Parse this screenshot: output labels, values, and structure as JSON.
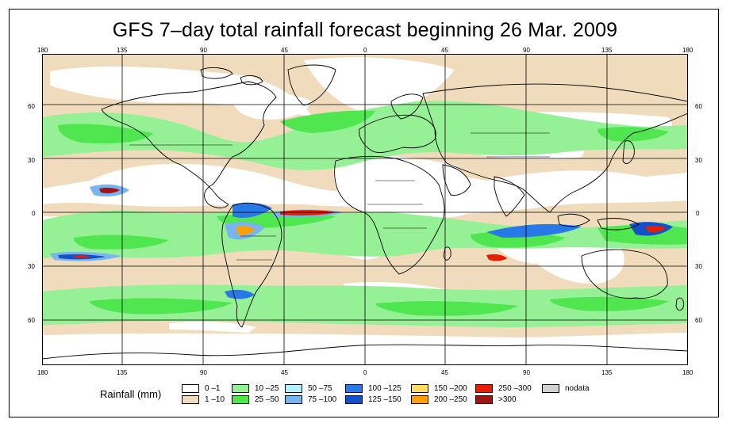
{
  "title": "GFS 7–day total rainfall forecast beginning 26 Mar. 2009",
  "axes": {
    "lon_ticks": [
      "180",
      "135",
      "90",
      "45",
      "0",
      "45",
      "90",
      "135",
      "180"
    ],
    "lat_ticks": [
      "60",
      "30",
      "0",
      "30",
      "60"
    ]
  },
  "legend": {
    "title": "Rainfall (mm)",
    "items": [
      {
        "label": "0 –1",
        "color": "#ffffff"
      },
      {
        "label": "1 –10",
        "color": "#f0dcbc"
      },
      {
        "label": "10 –25",
        "color": "#96f096"
      },
      {
        "label": "25 –50",
        "color": "#50e650"
      },
      {
        "label": "50 –75",
        "color": "#b4f0fa"
      },
      {
        "label": "75 –100",
        "color": "#78b4f0"
      },
      {
        "label": "100 –125",
        "color": "#2878e6"
      },
      {
        "label": "125 –150",
        "color": "#1450c8"
      },
      {
        "label": "150 –200",
        "color": "#ffdc64"
      },
      {
        "label": "200 –250",
        "color": "#ffa000"
      },
      {
        "label": "250 –300",
        "color": "#e61e00"
      },
      {
        "label": ">300",
        "color": "#a01414"
      },
      {
        "label": "nodata",
        "color": "#d2d2d2"
      }
    ]
  },
  "colors": {
    "land_outline": "#000000",
    "grid": "#000000"
  }
}
